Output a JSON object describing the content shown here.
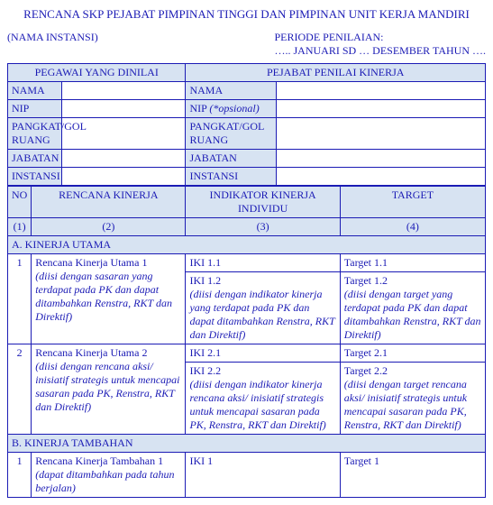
{
  "title": "RENCANA SKP PEJABAT PIMPINAN TINGGI DAN PIMPINAN UNIT KERJA MANDIRI",
  "header": {
    "instansi_label": "(NAMA INSTANSI)",
    "periode_label": "PERIODE PENILAIAN:",
    "periode_value": "….. JANUARI SD … DESEMBER TAHUN …."
  },
  "section_headers": {
    "pegawai": "PEGAWAI YANG DINILAI",
    "penilai": "PEJABAT PENILAI KINERJA"
  },
  "bio_rows": {
    "nama": "NAMA",
    "nip": "NIP",
    "nip_opt": "NIP (*opsional)",
    "pangkat": "PANGKAT/GOL RUANG",
    "jabatan": "JABATAN",
    "instansi": "INSTANSI"
  },
  "col_headers": {
    "no": "NO",
    "rk": "RENCANA KINERJA",
    "iki": "INDIKATOR KINERJA INDIVIDU",
    "target": "TARGET",
    "c1": "(1)",
    "c2": "(2)",
    "c3": "(3)",
    "c4": "(4)"
  },
  "sections": {
    "utama": "A. KINERJA UTAMA",
    "tambahan": "B. KINERJA TAMBAHAN"
  },
  "rows": {
    "u1": {
      "no": "1",
      "title": "Rencana Kinerja Utama 1",
      "note": "(diisi dengan sasaran yang terdapat pada PK dan dapat ditambahkan Renstra, RKT dan Direktif)",
      "iki1": "IKI 1.1",
      "iki2_title": "IKI 1.2",
      "iki2_note": "(diisi dengan indikator kinerja yang terdapat pada PK dan dapat ditambahkan Renstra, RKT dan Direktif)",
      "t1": "Target 1.1",
      "t2_title": "Target 1.2",
      "t2_note": "(diisi dengan target yang terdapat pada PK dan dapat ditambahkan Renstra, RKT dan Direktif)"
    },
    "u2": {
      "no": "2",
      "title": "Rencana Kinerja Utama 2",
      "note": "(diisi dengan rencana aksi/ inisiatif strategis untuk mencapai sasaran pada PK, Renstra, RKT dan Direktif)",
      "iki1": "IKI 2.1",
      "iki2_title": "IKI 2.2",
      "iki2_note": "(diisi dengan indikator kinerja rencana aksi/ inisiatif strategis untuk mencapai sasaran pada PK, Renstra, RKT dan Direktif)",
      "t1": "Target 2.1",
      "t2_title": "Target 2.2",
      "t2_note": "(diisi dengan target rencana aksi/ inisiatif strategis untuk mencapai sasaran pada PK, Renstra, RKT dan Direktif)"
    },
    "tb1": {
      "no": "1",
      "title": "Rencana Kinerja Tambahan 1",
      "note": "(dapat ditambahkan pada tahun berjalan)",
      "iki": "IKI 1",
      "t": "Target 1"
    }
  }
}
